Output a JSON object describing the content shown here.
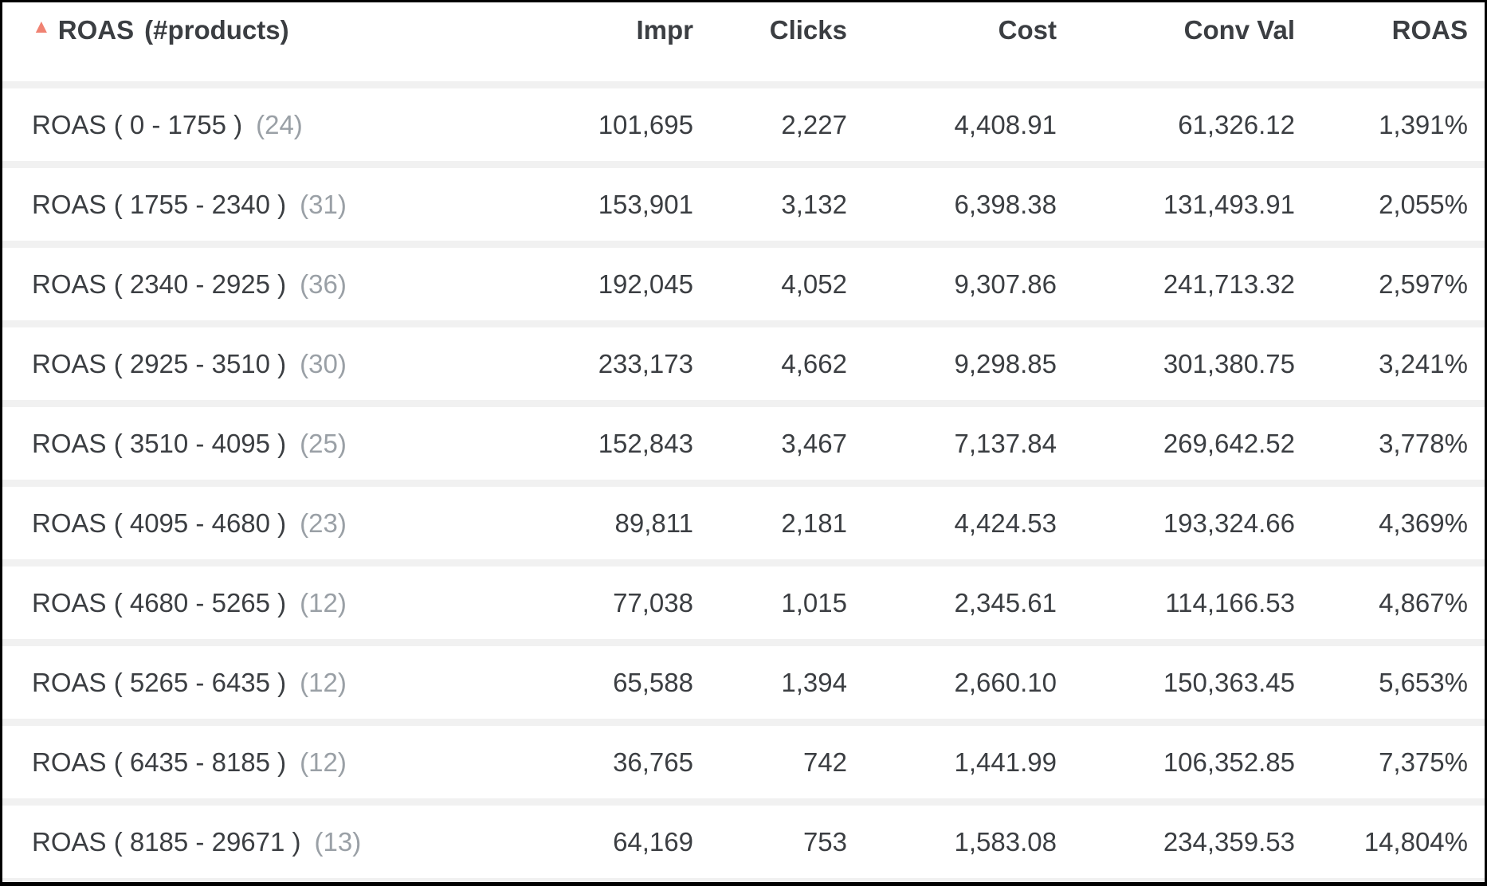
{
  "table": {
    "sort": {
      "column": "ROAS (#products)",
      "direction": "ascending"
    },
    "header": {
      "roas_title": "ROAS",
      "products_suffix": "(#products)",
      "impr": "Impr",
      "clicks": "Clicks",
      "cost": "Cost",
      "conv_val": "Conv Val",
      "roas": "ROAS"
    },
    "rows": [
      {
        "label": "ROAS ( 0 - 1755 )",
        "count": "(24)",
        "impr": "101,695",
        "clicks": "2,227",
        "cost": "4,408.91",
        "conv_val": "61,326.12",
        "roas": "1,391%"
      },
      {
        "label": "ROAS ( 1755 - 2340 )",
        "count": "(31)",
        "impr": "153,901",
        "clicks": "3,132",
        "cost": "6,398.38",
        "conv_val": "131,493.91",
        "roas": "2,055%"
      },
      {
        "label": "ROAS ( 2340 - 2925 )",
        "count": "(36)",
        "impr": "192,045",
        "clicks": "4,052",
        "cost": "9,307.86",
        "conv_val": "241,713.32",
        "roas": "2,597%"
      },
      {
        "label": "ROAS ( 2925 - 3510 )",
        "count": "(30)",
        "impr": "233,173",
        "clicks": "4,662",
        "cost": "9,298.85",
        "conv_val": "301,380.75",
        "roas": "3,241%"
      },
      {
        "label": "ROAS ( 3510 - 4095 )",
        "count": "(25)",
        "impr": "152,843",
        "clicks": "3,467",
        "cost": "7,137.84",
        "conv_val": "269,642.52",
        "roas": "3,778%"
      },
      {
        "label": "ROAS ( 4095 - 4680 )",
        "count": "(23)",
        "impr": "89,811",
        "clicks": "2,181",
        "cost": "4,424.53",
        "conv_val": "193,324.66",
        "roas": "4,369%"
      },
      {
        "label": "ROAS ( 4680 - 5265 )",
        "count": "(12)",
        "impr": "77,038",
        "clicks": "1,015",
        "cost": "2,345.61",
        "conv_val": "114,166.53",
        "roas": "4,867%"
      },
      {
        "label": "ROAS ( 5265 - 6435 )",
        "count": "(12)",
        "impr": "65,588",
        "clicks": "1,394",
        "cost": "2,660.10",
        "conv_val": "150,363.45",
        "roas": "5,653%"
      },
      {
        "label": "ROAS ( 6435 - 8185 )",
        "count": "(12)",
        "impr": "36,765",
        "clicks": "742",
        "cost": "1,441.99",
        "conv_val": "106,352.85",
        "roas": "7,375%"
      },
      {
        "label": "ROAS ( 8185 - 29671 )",
        "count": "(13)",
        "impr": "64,169",
        "clicks": "753",
        "cost": "1,583.08",
        "conv_val": "234,359.53",
        "roas": "14,804%"
      }
    ]
  },
  "colors": {
    "sort_arrow": "#f08272",
    "text": "#3b3e42",
    "muted_count": "#9aa0a6",
    "row_divider": "#f1f1f1",
    "frame_border": "#000000"
  },
  "icons": {
    "sort_ascending": "▲"
  }
}
